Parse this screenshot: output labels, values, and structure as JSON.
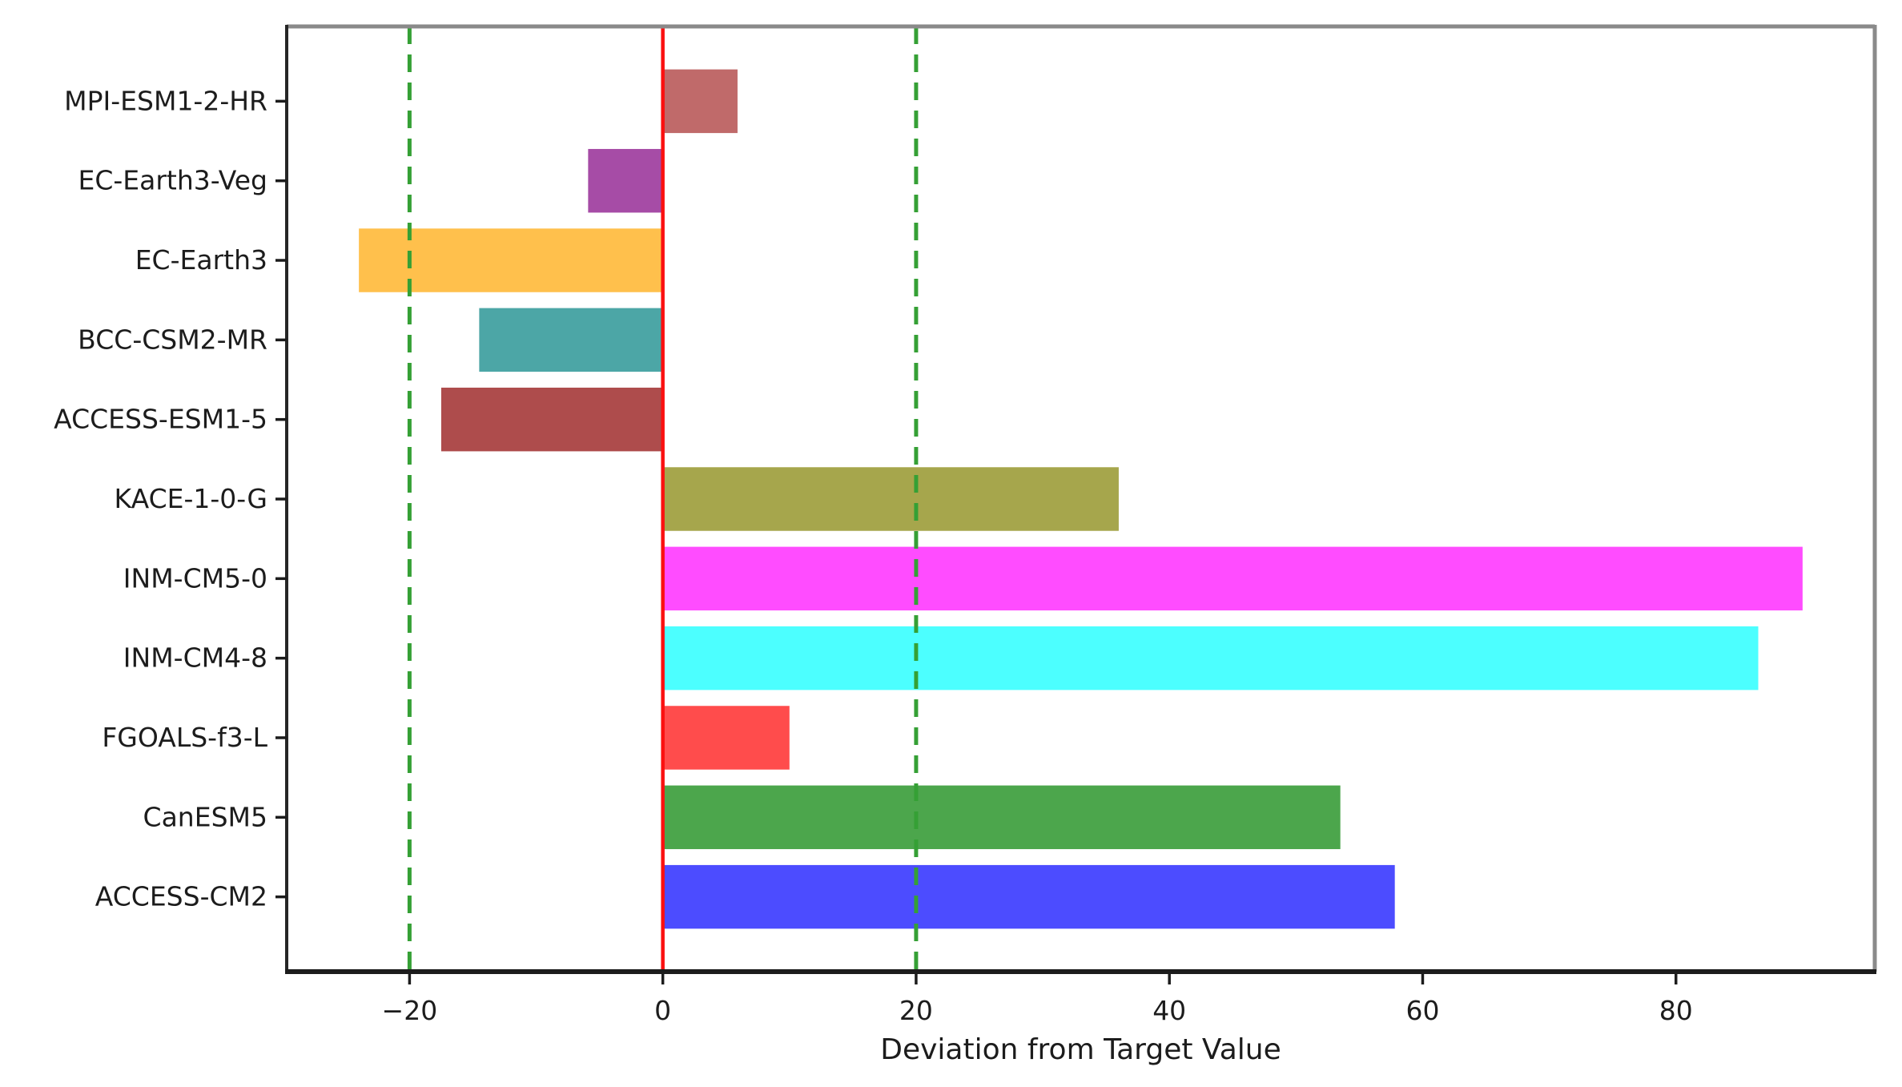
{
  "chart_data": {
    "type": "bar",
    "orientation": "horizontal",
    "title": "",
    "xlabel": "Deviation from Target Value",
    "ylabel": "",
    "categories": [
      "MPI-ESM1-2-HR",
      "EC-Earth3-Veg",
      "EC-Earth3",
      "BCC-CSM2-MR",
      "ACCESS-ESM1-5",
      "KACE-1-0-G",
      "INM-CM5-0",
      "INM-CM4-8",
      "FGOALS-f3-L",
      "CanESM5",
      "ACCESS-CM2"
    ],
    "values": [
      5.9,
      -5.9,
      -24.0,
      -14.5,
      -17.5,
      36.0,
      90.0,
      86.5,
      10.0,
      53.5,
      57.8
    ],
    "bar_colors": [
      "#c06a6a",
      "#a64ca6",
      "#ffc04c",
      "#4ca6a6",
      "#ae4c4c",
      "#a6a64c",
      "#ff4cff",
      "#4cffff",
      "#ff4c4c",
      "#4ca64c",
      "#4c4cff"
    ],
    "bar_height_fraction": 0.8,
    "xlim": [
      -29.7,
      95.7
    ],
    "ylim": [
      -0.94,
      10.94
    ],
    "xticks": [
      {
        "value": -20,
        "label": "−20"
      },
      {
        "value": 0,
        "label": "0"
      },
      {
        "value": 20,
        "label": "20"
      },
      {
        "value": 40,
        "label": "40"
      },
      {
        "value": 60,
        "label": "60"
      },
      {
        "value": 80,
        "label": "80"
      }
    ],
    "reference_lines": [
      {
        "x": 0,
        "color": "#fb1010",
        "style": "solid",
        "name": "zero-line"
      },
      {
        "x": -20,
        "color": "#35a035",
        "style": "dashed",
        "name": "lower-target-line"
      },
      {
        "x": 20,
        "color": "#35a035",
        "style": "dashed",
        "name": "upper-target-line"
      }
    ],
    "grid": false,
    "legend": null,
    "colors": {
      "axis_dark": "#1c1c1c",
      "spine_light": "#8a8a8a",
      "background": "#ffffff"
    }
  }
}
